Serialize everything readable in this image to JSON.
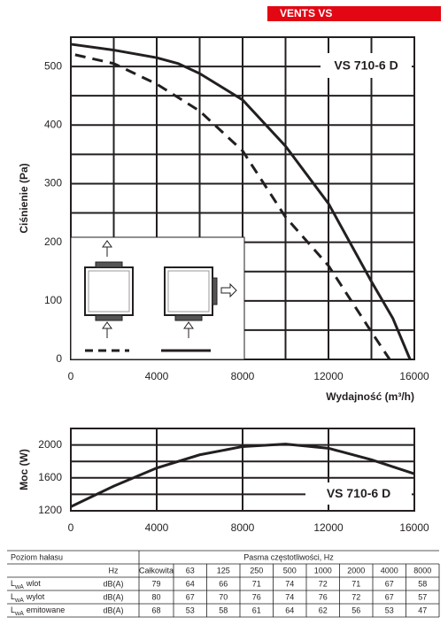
{
  "header": "VENTS VS",
  "chart_data": [
    {
      "type": "line",
      "annotation": "VS 710-6 D",
      "ylabel": "Ciśnienie (Pa)",
      "xlabel": "Wydajność (m³/h)",
      "xlim": [
        0,
        16000
      ],
      "xticks": [
        0,
        4000,
        8000,
        12000,
        16000
      ],
      "ylim": [
        0,
        550
      ],
      "yticks": [
        0,
        100,
        200,
        300,
        400,
        500
      ],
      "grid": true,
      "minor_grid_x": true,
      "minor_grid_y": true,
      "series": [
        {
          "color": "#231f20",
          "style": "solid",
          "x": [
            0,
            2000,
            4000,
            5000,
            6000,
            8000,
            10000,
            12000,
            14000,
            15000,
            15800
          ],
          "values": [
            538,
            528,
            515,
            505,
            488,
            443,
            364,
            266,
            133,
            70,
            0
          ]
        },
        {
          "color": "#231f20",
          "style": "dashed",
          "x": [
            200,
            2000,
            4000,
            6000,
            8000,
            10000,
            12000,
            14000,
            14850
          ],
          "values": [
            520,
            505,
            470,
            424,
            356,
            243,
            160,
            47,
            0
          ]
        }
      ]
    },
    {
      "type": "line",
      "annotation": "VS 710-6 D",
      "ylabel": "Moc (W)",
      "xlim": [
        0,
        16000
      ],
      "xticks": [
        0,
        4000,
        8000,
        12000,
        16000
      ],
      "ylim": [
        1200,
        2200
      ],
      "yticks": [
        1200,
        1600,
        2000
      ],
      "grid": true,
      "minor_grid_x": false,
      "minor_grid_y": true,
      "series": [
        {
          "color": "#231f20",
          "style": "solid",
          "x": [
            0,
            2000,
            4000,
            6000,
            8000,
            10000,
            12000,
            14000,
            16000
          ],
          "values": [
            1250,
            1500,
            1720,
            1880,
            1980,
            2010,
            1960,
            1820,
            1650
          ]
        }
      ]
    }
  ],
  "table": {
    "title": "Poziom hałasu",
    "group": "Pasma częstotliwości, Hz",
    "columns": [
      "Hz",
      "Całkowita",
      63,
      125,
      250,
      500,
      1000,
      2000,
      4000,
      8000
    ],
    "rows": [
      {
        "symbol": "L",
        "subscript": "wA",
        "name": "wlot",
        "unit": "dB(A)",
        "values": [
          79,
          64,
          66,
          71,
          74,
          72,
          71,
          67,
          58
        ]
      },
      {
        "symbol": "L",
        "subscript": "wA",
        "name": "wylot",
        "unit": "dB(A)",
        "values": [
          80,
          67,
          70,
          76,
          74,
          76,
          72,
          67,
          57
        ]
      },
      {
        "symbol": "L",
        "subscript": "wA",
        "name": "emitowane",
        "unit": "dB(A)",
        "values": [
          68,
          53,
          58,
          61,
          64,
          62,
          56,
          53,
          47
        ]
      }
    ]
  }
}
